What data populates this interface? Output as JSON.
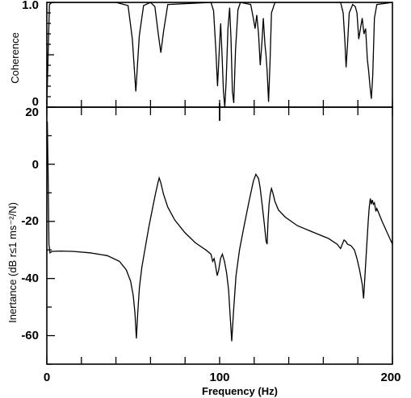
{
  "chart_data": [
    {
      "type": "line",
      "ylabel": "Coherence",
      "xlim": [
        0,
        200
      ],
      "ylim": [
        0,
        1.0
      ],
      "ytick_labels": [
        "1.0",
        "0"
      ],
      "yticks": [
        1.0,
        0
      ],
      "grid": false,
      "series": [
        {
          "points": [
            [
              0,
              0.02
            ],
            [
              1.5,
              0.98
            ],
            [
              3,
              1.0
            ],
            [
              40,
              1.0
            ],
            [
              47,
              0.97
            ],
            [
              49.5,
              0.65
            ],
            [
              51.5,
              0.15
            ],
            [
              53.5,
              0.68
            ],
            [
              56,
              0.97
            ],
            [
              60,
              1.0
            ],
            [
              62.5,
              0.96
            ],
            [
              64.5,
              0.7
            ],
            [
              66,
              0.52
            ],
            [
              67.5,
              0.72
            ],
            [
              70,
              0.98
            ],
            [
              95,
              1.0
            ],
            [
              96.5,
              0.92
            ],
            [
              97.8,
              0.55
            ],
            [
              98.8,
              0.2
            ],
            [
              99.8,
              0.55
            ],
            [
              100.6,
              0.8
            ],
            [
              101.4,
              0.5
            ],
            [
              102.2,
              0.15
            ],
            [
              103,
              0.0
            ],
            [
              103.8,
              0.25
            ],
            [
              104.8,
              0.75
            ],
            [
              105.8,
              0.95
            ],
            [
              106.6,
              0.65
            ],
            [
              107.4,
              0.15
            ],
            [
              108.2,
              0.04
            ],
            [
              109.2,
              0.55
            ],
            [
              110.6,
              0.93
            ],
            [
              112,
              1.0
            ],
            [
              118,
              0.98
            ],
            [
              119.5,
              0.85
            ],
            [
              120.5,
              0.75
            ],
            [
              121.5,
              0.88
            ],
            [
              122.5,
              0.7
            ],
            [
              123.5,
              0.4
            ],
            [
              124.5,
              0.62
            ],
            [
              125.3,
              0.85
            ],
            [
              126.2,
              0.6
            ],
            [
              126.8,
              0.5
            ],
            [
              127.5,
              0.35
            ],
            [
              128.3,
              0.05
            ],
            [
              129.2,
              0.45
            ],
            [
              130,
              0.9
            ],
            [
              132,
              1.0
            ],
            [
              170,
              1.0
            ],
            [
              171.5,
              0.9
            ],
            [
              172.5,
              0.62
            ],
            [
              173.2,
              0.38
            ],
            [
              174,
              0.6
            ],
            [
              175,
              0.9
            ],
            [
              177,
              0.98
            ],
            [
              178.5,
              0.96
            ],
            [
              179.5,
              0.9
            ],
            [
              180.5,
              0.65
            ],
            [
              181.5,
              0.75
            ],
            [
              182.5,
              0.85
            ],
            [
              183.5,
              0.7
            ],
            [
              184.5,
              0.75
            ],
            [
              185.5,
              0.45
            ],
            [
              186.2,
              0.35
            ],
            [
              187,
              0.2
            ],
            [
              187.8,
              0.08
            ],
            [
              188.6,
              0.3
            ],
            [
              189.6,
              0.85
            ],
            [
              191,
              0.98
            ],
            [
              200,
              1.0
            ]
          ]
        }
      ]
    },
    {
      "type": "line",
      "xlabel": "Frequency (Hz)",
      "ylabel": "Inertance (dB r≤1 ms⁻²/N)",
      "xlim": [
        0,
        200
      ],
      "ylim": [
        -70,
        20
      ],
      "xticks": [
        0,
        100,
        200
      ],
      "xtick_labels": [
        "0",
        "100",
        "200"
      ],
      "yticks": [
        20,
        0,
        -20,
        -40,
        -60
      ],
      "ytick_labels": [
        "20",
        "0",
        "-20",
        "-40",
        "-60"
      ],
      "grid": false,
      "series": [
        {
          "points": [
            [
              0.3,
              15
            ],
            [
              0.8,
              -5
            ],
            [
              1.2,
              -28
            ],
            [
              1.8,
              -31
            ],
            [
              3,
              -30.5
            ],
            [
              8,
              -30.4
            ],
            [
              15,
              -30.5
            ],
            [
              25,
              -31
            ],
            [
              35,
              -32
            ],
            [
              42,
              -34
            ],
            [
              46,
              -37
            ],
            [
              48.5,
              -41
            ],
            [
              50,
              -46
            ],
            [
              51,
              -52
            ],
            [
              51.8,
              -61
            ],
            [
              52.6,
              -52
            ],
            [
              53.6,
              -43
            ],
            [
              55,
              -36
            ],
            [
              57,
              -29
            ],
            [
              59,
              -22
            ],
            [
              61,
              -16
            ],
            [
              63,
              -10
            ],
            [
              64.3,
              -6.5
            ],
            [
              65,
              -4.8
            ],
            [
              66,
              -6.5
            ],
            [
              67.5,
              -10.5
            ],
            [
              70,
              -15
            ],
            [
              74,
              -19.5
            ],
            [
              80,
              -24
            ],
            [
              86,
              -27.5
            ],
            [
              92,
              -30
            ],
            [
              95,
              -31.5
            ],
            [
              96,
              -34
            ],
            [
              96.8,
              -33
            ],
            [
              97.5,
              -35
            ],
            [
              98.6,
              -39
            ],
            [
              99.5,
              -37
            ],
            [
              100.5,
              -33
            ],
            [
              101.6,
              -31.5
            ],
            [
              102.8,
              -34
            ],
            [
              104,
              -38
            ],
            [
              105.2,
              -44
            ],
            [
              106,
              -52
            ],
            [
              107,
              -62
            ],
            [
              108,
              -52
            ],
            [
              109.5,
              -39
            ],
            [
              111.5,
              -30
            ],
            [
              114,
              -22
            ],
            [
              117,
              -13
            ],
            [
              119.5,
              -6
            ],
            [
              121,
              -3.5
            ],
            [
              122.5,
              -5
            ],
            [
              123.5,
              -8.5
            ],
            [
              124.6,
              -14
            ],
            [
              125.5,
              -19
            ],
            [
              126.2,
              -23
            ],
            [
              126.9,
              -27
            ],
            [
              127.5,
              -28
            ],
            [
              128,
              -20
            ],
            [
              128.6,
              -14
            ],
            [
              129.3,
              -10.5
            ],
            [
              130,
              -8.5
            ],
            [
              130.8,
              -10
            ],
            [
              132,
              -13
            ],
            [
              134,
              -16
            ],
            [
              138,
              -18.5
            ],
            [
              145,
              -21.5
            ],
            [
              155,
              -24
            ],
            [
              163,
              -26
            ],
            [
              168,
              -28
            ],
            [
              170,
              -29.5
            ],
            [
              171,
              -28
            ],
            [
              172,
              -26.5
            ],
            [
              173,
              -27
            ],
            [
              174,
              -28
            ],
            [
              176,
              -28.5
            ],
            [
              178,
              -30
            ],
            [
              179.5,
              -33
            ],
            [
              181,
              -37
            ],
            [
              182.5,
              -42
            ],
            [
              183.3,
              -47
            ],
            [
              184.2,
              -38
            ],
            [
              185.2,
              -28
            ],
            [
              186,
              -20
            ],
            [
              186.6,
              -15
            ],
            [
              187.2,
              -12
            ],
            [
              187.8,
              -14
            ],
            [
              188.3,
              -12.5
            ],
            [
              189,
              -14
            ],
            [
              189.6,
              -13.5
            ],
            [
              190.4,
              -16.5
            ],
            [
              191,
              -15.5
            ],
            [
              192,
              -17
            ],
            [
              194,
              -20
            ],
            [
              197,
              -24
            ],
            [
              200,
              -28
            ]
          ]
        }
      ]
    }
  ]
}
